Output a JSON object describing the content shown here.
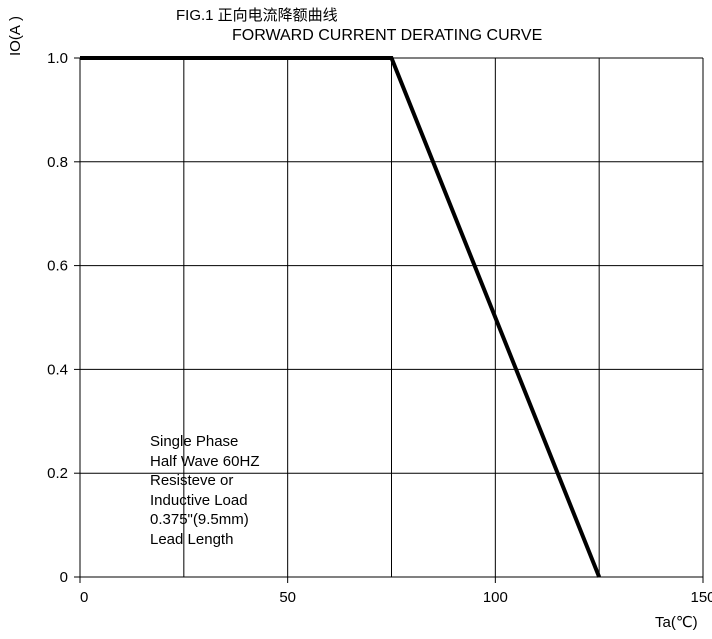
{
  "chart_data": {
    "type": "line",
    "title_line1": "FIG.1 正向电流降额曲线",
    "title_line2": "FORWARD CURRENT  DERATING CURVE",
    "ylabel": "IO(A )",
    "xunit": "Ta(℃)",
    "xlim": [
      0,
      150
    ],
    "ylim": [
      0,
      1.0
    ],
    "x_ticks": [
      {
        "value": 0,
        "label": "0"
      },
      {
        "value": 50,
        "label": "50"
      },
      {
        "value": 100,
        "label": "100"
      },
      {
        "value": 150,
        "label": "150"
      }
    ],
    "y_ticks": [
      {
        "value": 0,
        "label": "0"
      },
      {
        "value": 0.2,
        "label": "0.2"
      },
      {
        "value": 0.4,
        "label": "0.4"
      },
      {
        "value": 0.6,
        "label": "0.6"
      },
      {
        "value": 0.8,
        "label": "0.8"
      },
      {
        "value": 1.0,
        "label": "1.0"
      }
    ],
    "x_grid": [
      25,
      50,
      75,
      100,
      125,
      150
    ],
    "y_grid": [
      0.2,
      0.4,
      0.6,
      0.8,
      1.0
    ],
    "grid": true,
    "series": [
      {
        "x": [
          0,
          75,
          125
        ],
        "y": [
          1.0,
          1.0,
          0
        ]
      }
    ],
    "annotation": [
      "Single Phase",
      "Half Wave 60HZ",
      "Resisteve or",
      "Inductive Load",
      "0.375\"(9.5mm)",
      "Lead Length"
    ]
  }
}
